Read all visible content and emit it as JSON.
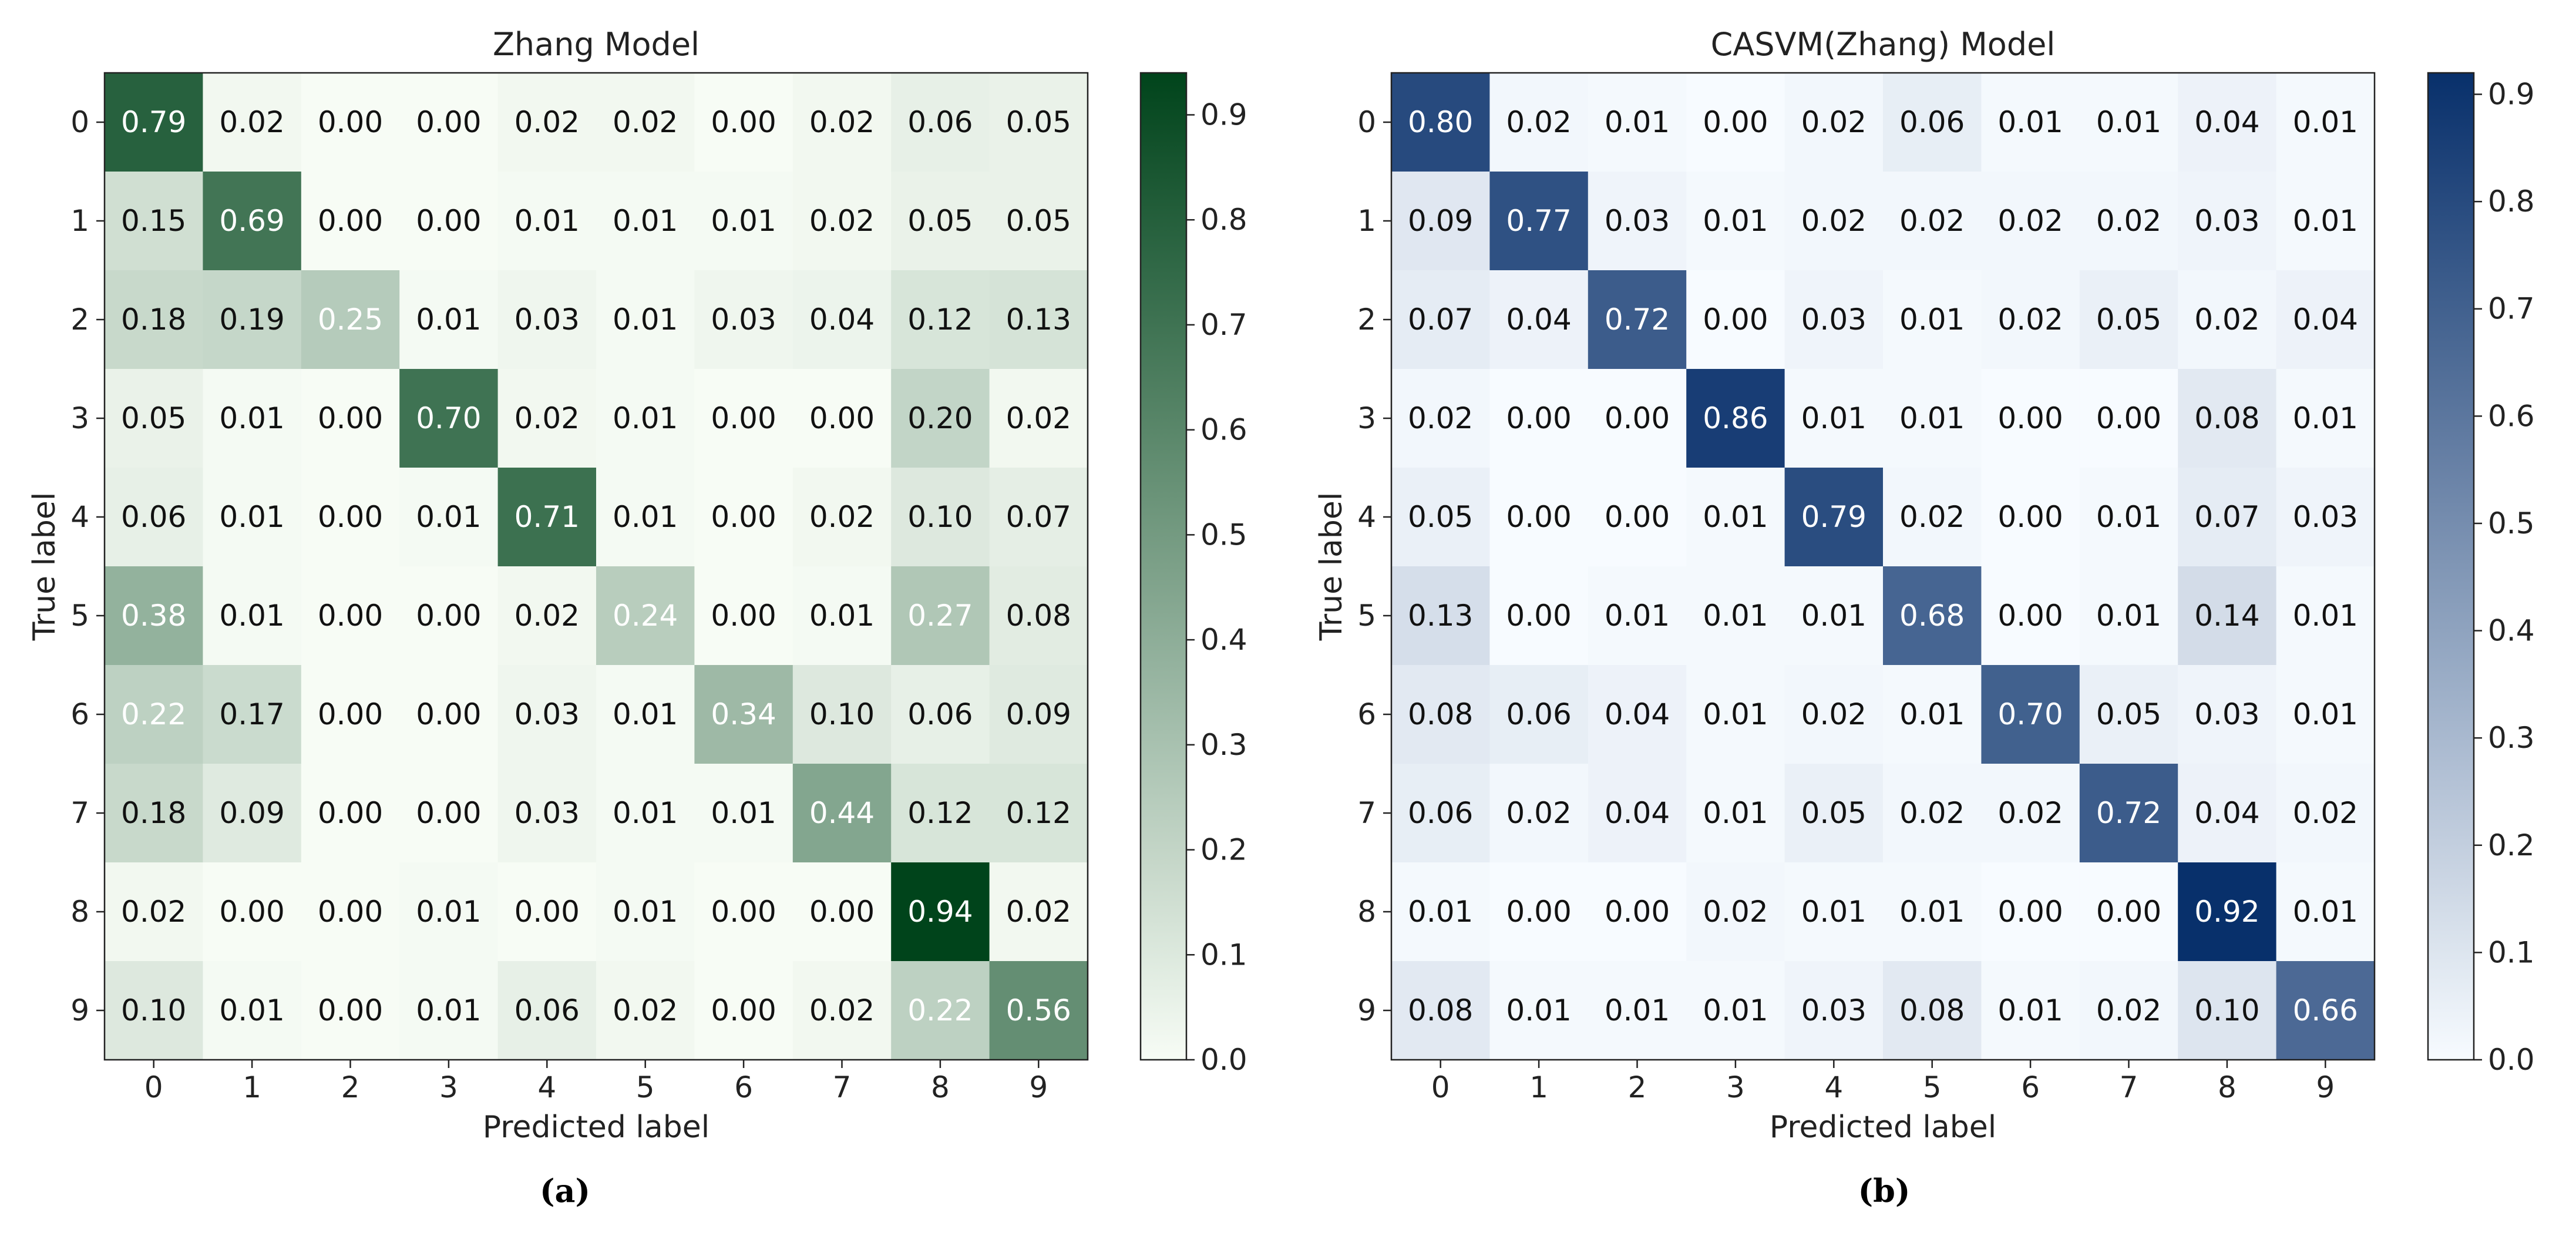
{
  "chart_data": [
    {
      "type": "heatmap",
      "title": "Zhang Model",
      "xlabel": "Predicted label",
      "ylabel": "True label",
      "x_categories": [
        "0",
        "1",
        "2",
        "3",
        "4",
        "5",
        "6",
        "7",
        "8",
        "9"
      ],
      "y_categories": [
        "0",
        "1",
        "2",
        "3",
        "4",
        "5",
        "6",
        "7",
        "8",
        "9"
      ],
      "values": [
        [
          "0.79",
          "0.02",
          "0.00",
          "0.00",
          "0.02",
          "0.02",
          "0.00",
          "0.02",
          "0.06",
          "0.05"
        ],
        [
          "0.15",
          "0.69",
          "0.00",
          "0.00",
          "0.01",
          "0.01",
          "0.01",
          "0.02",
          "0.05",
          "0.05"
        ],
        [
          "0.18",
          "0.19",
          "0.25",
          "0.01",
          "0.03",
          "0.01",
          "0.03",
          "0.04",
          "0.12",
          "0.13"
        ],
        [
          "0.05",
          "0.01",
          "0.00",
          "0.70",
          "0.02",
          "0.01",
          "0.00",
          "0.00",
          "0.20",
          "0.02"
        ],
        [
          "0.06",
          "0.01",
          "0.00",
          "0.01",
          "0.71",
          "0.01",
          "0.00",
          "0.02",
          "0.10",
          "0.07"
        ],
        [
          "0.38",
          "0.01",
          "0.00",
          "0.00",
          "0.02",
          "0.24",
          "0.00",
          "0.01",
          "0.27",
          "0.08"
        ],
        [
          "0.22",
          "0.17",
          "0.00",
          "0.00",
          "0.03",
          "0.01",
          "0.34",
          "0.10",
          "0.06",
          "0.09"
        ],
        [
          "0.18",
          "0.09",
          "0.00",
          "0.00",
          "0.03",
          "0.01",
          "0.01",
          "0.44",
          "0.12",
          "0.12"
        ],
        [
          "0.02",
          "0.00",
          "0.00",
          "0.01",
          "0.00",
          "0.01",
          "0.00",
          "0.00",
          "0.94",
          "0.02"
        ],
        [
          "0.10",
          "0.01",
          "0.00",
          "0.01",
          "0.06",
          "0.02",
          "0.00",
          "0.02",
          "0.22",
          "0.56"
        ]
      ],
      "colormap": "Greens",
      "colormap_low": "#f7fcf5",
      "colormap_high": "#00441b",
      "colorbar_range": [
        0,
        0.94
      ],
      "colorbar_ticks": [
        "0.0",
        "0.1",
        "0.2",
        "0.3",
        "0.4",
        "0.5",
        "0.6",
        "0.7",
        "0.8",
        "0.9"
      ],
      "caption": "(a)"
    },
    {
      "type": "heatmap",
      "title": "CASVM(Zhang) Model",
      "xlabel": "Predicted label",
      "ylabel": "True label",
      "x_categories": [
        "0",
        "1",
        "2",
        "3",
        "4",
        "5",
        "6",
        "7",
        "8",
        "9"
      ],
      "y_categories": [
        "0",
        "1",
        "2",
        "3",
        "4",
        "5",
        "6",
        "7",
        "8",
        "9"
      ],
      "values": [
        [
          "0.80",
          "0.02",
          "0.01",
          "0.00",
          "0.02",
          "0.06",
          "0.01",
          "0.01",
          "0.04",
          "0.01"
        ],
        [
          "0.09",
          "0.77",
          "0.03",
          "0.01",
          "0.02",
          "0.02",
          "0.02",
          "0.02",
          "0.03",
          "0.01"
        ],
        [
          "0.07",
          "0.04",
          "0.72",
          "0.00",
          "0.03",
          "0.01",
          "0.02",
          "0.05",
          "0.02",
          "0.04"
        ],
        [
          "0.02",
          "0.00",
          "0.00",
          "0.86",
          "0.01",
          "0.01",
          "0.00",
          "0.00",
          "0.08",
          "0.01"
        ],
        [
          "0.05",
          "0.00",
          "0.00",
          "0.01",
          "0.79",
          "0.02",
          "0.00",
          "0.01",
          "0.07",
          "0.03"
        ],
        [
          "0.13",
          "0.00",
          "0.01",
          "0.01",
          "0.01",
          "0.68",
          "0.00",
          "0.01",
          "0.14",
          "0.01"
        ],
        [
          "0.08",
          "0.06",
          "0.04",
          "0.01",
          "0.02",
          "0.01",
          "0.70",
          "0.05",
          "0.03",
          "0.01"
        ],
        [
          "0.06",
          "0.02",
          "0.04",
          "0.01",
          "0.05",
          "0.02",
          "0.02",
          "0.72",
          "0.04",
          "0.02"
        ],
        [
          "0.01",
          "0.00",
          "0.00",
          "0.02",
          "0.01",
          "0.01",
          "0.00",
          "0.00",
          "0.92",
          "0.01"
        ],
        [
          "0.08",
          "0.01",
          "0.01",
          "0.01",
          "0.03",
          "0.08",
          "0.01",
          "0.02",
          "0.10",
          "0.66"
        ]
      ],
      "colormap": "Blues",
      "colormap_low": "#f7fbff",
      "colormap_high": "#08306b",
      "colorbar_range": [
        0,
        0.92
      ],
      "colorbar_ticks": [
        "0.0",
        "0.1",
        "0.2",
        "0.3",
        "0.4",
        "0.5",
        "0.6",
        "0.7",
        "0.8",
        "0.9"
      ],
      "caption": "(b)"
    }
  ]
}
